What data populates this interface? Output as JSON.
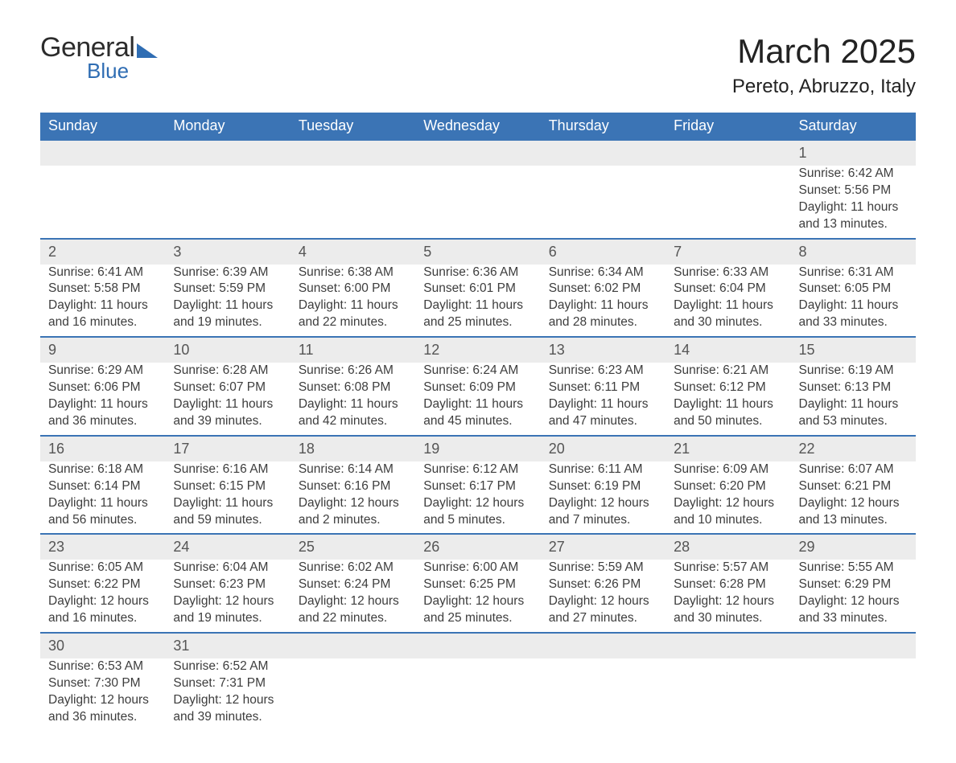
{
  "logo": {
    "text1": "General",
    "text2": "Blue",
    "brand_color": "#2f6db3"
  },
  "title": "March 2025",
  "location": "Pereto, Abruzzo, Italy",
  "header_bg": "#3b74b5",
  "header_text_color": "#ffffff",
  "daynum_bg": "#ececec",
  "border_color": "#3b74b5",
  "body_text_color": "#3d3d3d",
  "bg_color": "#ffffff",
  "font_family": "Arial, Helvetica, sans-serif",
  "month_title_fontsize": 42,
  "location_fontsize": 24,
  "header_fontsize": 18,
  "cell_fontsize": 15.5,
  "columns": [
    "Sunday",
    "Monday",
    "Tuesday",
    "Wednesday",
    "Thursday",
    "Friday",
    "Saturday"
  ],
  "weeks": [
    [
      null,
      null,
      null,
      null,
      null,
      null,
      {
        "d": "1",
        "sr": "6:42 AM",
        "ss": "5:56 PM",
        "dl": "11 hours and 13 minutes."
      }
    ],
    [
      {
        "d": "2",
        "sr": "6:41 AM",
        "ss": "5:58 PM",
        "dl": "11 hours and 16 minutes."
      },
      {
        "d": "3",
        "sr": "6:39 AM",
        "ss": "5:59 PM",
        "dl": "11 hours and 19 minutes."
      },
      {
        "d": "4",
        "sr": "6:38 AM",
        "ss": "6:00 PM",
        "dl": "11 hours and 22 minutes."
      },
      {
        "d": "5",
        "sr": "6:36 AM",
        "ss": "6:01 PM",
        "dl": "11 hours and 25 minutes."
      },
      {
        "d": "6",
        "sr": "6:34 AM",
        "ss": "6:02 PM",
        "dl": "11 hours and 28 minutes."
      },
      {
        "d": "7",
        "sr": "6:33 AM",
        "ss": "6:04 PM",
        "dl": "11 hours and 30 minutes."
      },
      {
        "d": "8",
        "sr": "6:31 AM",
        "ss": "6:05 PM",
        "dl": "11 hours and 33 minutes."
      }
    ],
    [
      {
        "d": "9",
        "sr": "6:29 AM",
        "ss": "6:06 PM",
        "dl": "11 hours and 36 minutes."
      },
      {
        "d": "10",
        "sr": "6:28 AM",
        "ss": "6:07 PM",
        "dl": "11 hours and 39 minutes."
      },
      {
        "d": "11",
        "sr": "6:26 AM",
        "ss": "6:08 PM",
        "dl": "11 hours and 42 minutes."
      },
      {
        "d": "12",
        "sr": "6:24 AM",
        "ss": "6:09 PM",
        "dl": "11 hours and 45 minutes."
      },
      {
        "d": "13",
        "sr": "6:23 AM",
        "ss": "6:11 PM",
        "dl": "11 hours and 47 minutes."
      },
      {
        "d": "14",
        "sr": "6:21 AM",
        "ss": "6:12 PM",
        "dl": "11 hours and 50 minutes."
      },
      {
        "d": "15",
        "sr": "6:19 AM",
        "ss": "6:13 PM",
        "dl": "11 hours and 53 minutes."
      }
    ],
    [
      {
        "d": "16",
        "sr": "6:18 AM",
        "ss": "6:14 PM",
        "dl": "11 hours and 56 minutes."
      },
      {
        "d": "17",
        "sr": "6:16 AM",
        "ss": "6:15 PM",
        "dl": "11 hours and 59 minutes."
      },
      {
        "d": "18",
        "sr": "6:14 AM",
        "ss": "6:16 PM",
        "dl": "12 hours and 2 minutes."
      },
      {
        "d": "19",
        "sr": "6:12 AM",
        "ss": "6:17 PM",
        "dl": "12 hours and 5 minutes."
      },
      {
        "d": "20",
        "sr": "6:11 AM",
        "ss": "6:19 PM",
        "dl": "12 hours and 7 minutes."
      },
      {
        "d": "21",
        "sr": "6:09 AM",
        "ss": "6:20 PM",
        "dl": "12 hours and 10 minutes."
      },
      {
        "d": "22",
        "sr": "6:07 AM",
        "ss": "6:21 PM",
        "dl": "12 hours and 13 minutes."
      }
    ],
    [
      {
        "d": "23",
        "sr": "6:05 AM",
        "ss": "6:22 PM",
        "dl": "12 hours and 16 minutes."
      },
      {
        "d": "24",
        "sr": "6:04 AM",
        "ss": "6:23 PM",
        "dl": "12 hours and 19 minutes."
      },
      {
        "d": "25",
        "sr": "6:02 AM",
        "ss": "6:24 PM",
        "dl": "12 hours and 22 minutes."
      },
      {
        "d": "26",
        "sr": "6:00 AM",
        "ss": "6:25 PM",
        "dl": "12 hours and 25 minutes."
      },
      {
        "d": "27",
        "sr": "5:59 AM",
        "ss": "6:26 PM",
        "dl": "12 hours and 27 minutes."
      },
      {
        "d": "28",
        "sr": "5:57 AM",
        "ss": "6:28 PM",
        "dl": "12 hours and 30 minutes."
      },
      {
        "d": "29",
        "sr": "5:55 AM",
        "ss": "6:29 PM",
        "dl": "12 hours and 33 minutes."
      }
    ],
    [
      {
        "d": "30",
        "sr": "6:53 AM",
        "ss": "7:30 PM",
        "dl": "12 hours and 36 minutes."
      },
      {
        "d": "31",
        "sr": "6:52 AM",
        "ss": "7:31 PM",
        "dl": "12 hours and 39 minutes."
      },
      null,
      null,
      null,
      null,
      null
    ]
  ],
  "labels": {
    "sunrise": "Sunrise:",
    "sunset": "Sunset:",
    "daylight": "Daylight:"
  }
}
